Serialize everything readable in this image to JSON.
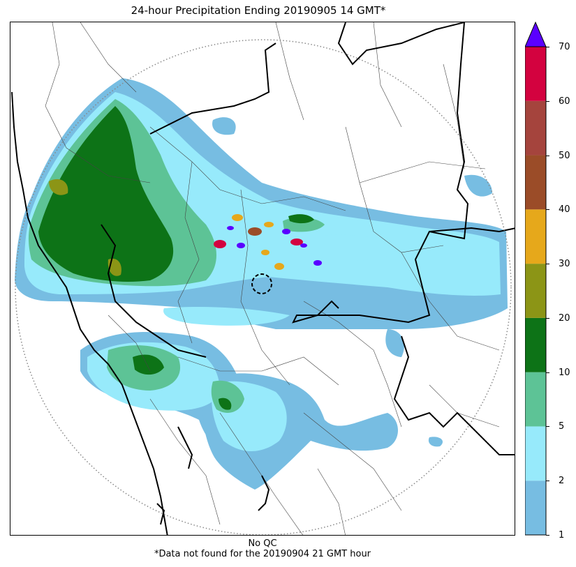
{
  "title": "24-hour Precipitation Ending 20190905 14 GMT*",
  "footer": {
    "qc": "No QC",
    "note": "*Data not found for the 20190904 21 GMT hour"
  },
  "colorbar": {
    "extend": "max",
    "extend_color": "#5a00ff",
    "levels": [
      {
        "value": "1",
        "color": "#77bde2"
      },
      {
        "value": "2",
        "color": "#97eafb"
      },
      {
        "value": "5",
        "color": "#5dc396"
      },
      {
        "value": "10",
        "color": "#0d7317"
      },
      {
        "value": "20",
        "color": "#8c9516"
      },
      {
        "value": "30",
        "color": "#e6a81b"
      },
      {
        "value": "40",
        "color": "#9b4c28"
      },
      {
        "value": "50",
        "color": "#a5443d"
      },
      {
        "value": "60",
        "color": "#d3023f"
      },
      {
        "value": "70",
        "color": ""
      }
    ]
  },
  "map": {
    "range_ring_style": "dotted gray",
    "radar_site_marker": "dashed circle",
    "boundary_state_color": "#000000",
    "boundary_district_color": "#444444"
  }
}
